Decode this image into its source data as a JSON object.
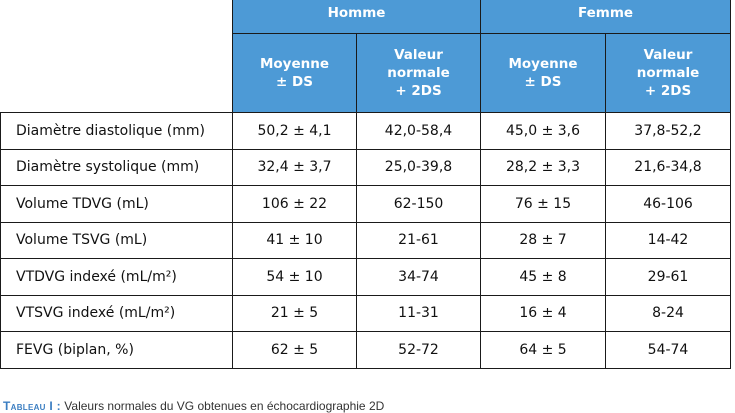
{
  "table": {
    "groups": [
      "Homme",
      "Femme"
    ],
    "subheaders": {
      "homme_moyenne": "Moyenne\n± DS",
      "homme_valeur": "Valeur\nnormale\n+ 2DS",
      "femme_moyenne": "Moyenne\n± DS",
      "femme_valeur": "Valeur\nnormale\n+ 2DS"
    },
    "rows": [
      {
        "label": "Diamètre diastolique (mm)",
        "h_moy": "50,2 ± 4,1",
        "h_val": "42,0-58,4",
        "f_moy": "45,0 ± 3,6",
        "f_val": "37,8-52,2"
      },
      {
        "label": "Diamètre systolique (mm)",
        "h_moy": "32,4 ± 3,7",
        "h_val": "25,0-39,8",
        "f_moy": "28,2 ± 3,3",
        "f_val": "21,6-34,8"
      },
      {
        "label": "Volume TDVG (mL)",
        "h_moy": "106 ± 22",
        "h_val": "62-150",
        "f_moy": "76 ± 15",
        "f_val": "46-106"
      },
      {
        "label": "Volume TSVG (mL)",
        "h_moy": "41 ± 10",
        "h_val": "21-61",
        "f_moy": "28 ± 7",
        "f_val": "14-42"
      },
      {
        "label": "VTDVG indexé (mL/m²)",
        "h_moy": "54 ± 10",
        "h_val": "34-74",
        "f_moy": "45 ± 8",
        "f_val": "29-61"
      },
      {
        "label": "VTSVG indexé (mL/m²)",
        "h_moy": "21 ± 5",
        "h_val": "11-31",
        "f_moy": "16 ± 4",
        "f_val": "8-24"
      },
      {
        "label": "FEVG (biplan, %)",
        "h_moy": "62 ± 5",
        "h_val": "52-72",
        "f_moy": "64 ± 5",
        "f_val": "54-74"
      }
    ]
  },
  "caption": {
    "lead": "Tableau I :",
    "text": " Valeurs normales du VG obtenues en échocardiographie 2D"
  },
  "colors": {
    "header_bg": "#4d9ad6",
    "header_text": "#ffffff",
    "caption_lead": "#3b7ec2"
  }
}
